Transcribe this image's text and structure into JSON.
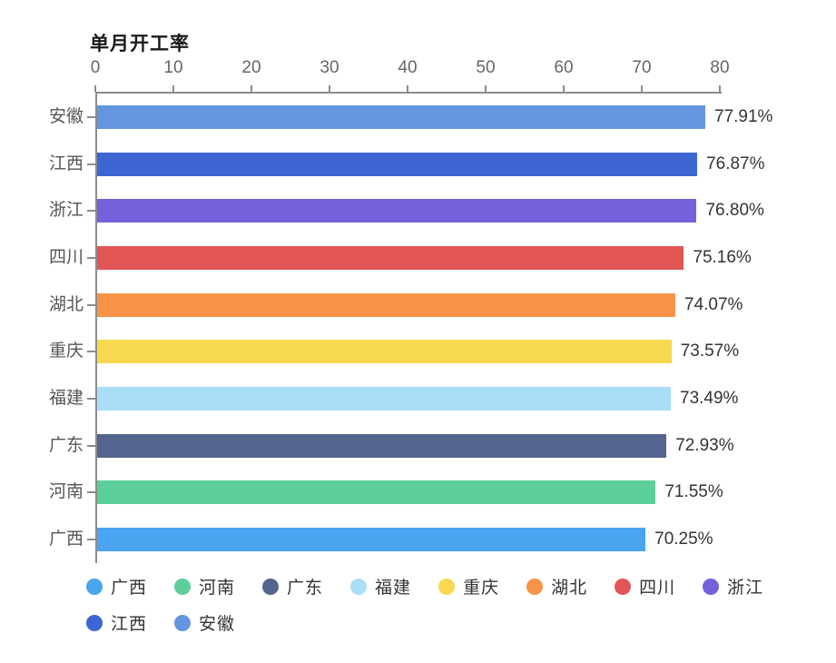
{
  "title": "单月开工率",
  "chart_data": {
    "type": "bar",
    "orientation": "horizontal",
    "title": "单月开工率",
    "categories": [
      "安徽",
      "江西",
      "浙江",
      "四川",
      "湖北",
      "重庆",
      "福建",
      "广东",
      "河南",
      "广西"
    ],
    "values": [
      77.91,
      76.87,
      76.8,
      75.16,
      74.07,
      73.57,
      73.49,
      72.93,
      71.55,
      70.25
    ],
    "value_labels": [
      "77.91%",
      "76.87%",
      "76.80%",
      "75.16%",
      "74.07%",
      "73.57%",
      "73.49%",
      "72.93%",
      "71.55%",
      "70.25%"
    ],
    "bar_colors": [
      "#6495e0",
      "#3d66d2",
      "#7561dc",
      "#e15654",
      "#f89348",
      "#f7d84e",
      "#aadef7",
      "#53658e",
      "#5dcf9a",
      "#4aa4f0"
    ],
    "x_ticks": [
      0,
      10,
      20,
      30,
      40,
      50,
      60,
      70,
      80
    ],
    "xlim": [
      0,
      80
    ],
    "grid": false,
    "legend_position": "bottom",
    "legend": [
      {
        "label": "广西",
        "color": "#4aa4f0"
      },
      {
        "label": "河南",
        "color": "#5dcf9a"
      },
      {
        "label": "广东",
        "color": "#53658e"
      },
      {
        "label": "福建",
        "color": "#aadef7"
      },
      {
        "label": "重庆",
        "color": "#f7d84e"
      },
      {
        "label": "湖北",
        "color": "#f89348"
      },
      {
        "label": "四川",
        "color": "#e15654"
      },
      {
        "label": "浙江",
        "color": "#7561dc"
      },
      {
        "label": "江西",
        "color": "#3d66d2"
      },
      {
        "label": "安徽",
        "color": "#6495e0"
      }
    ]
  }
}
